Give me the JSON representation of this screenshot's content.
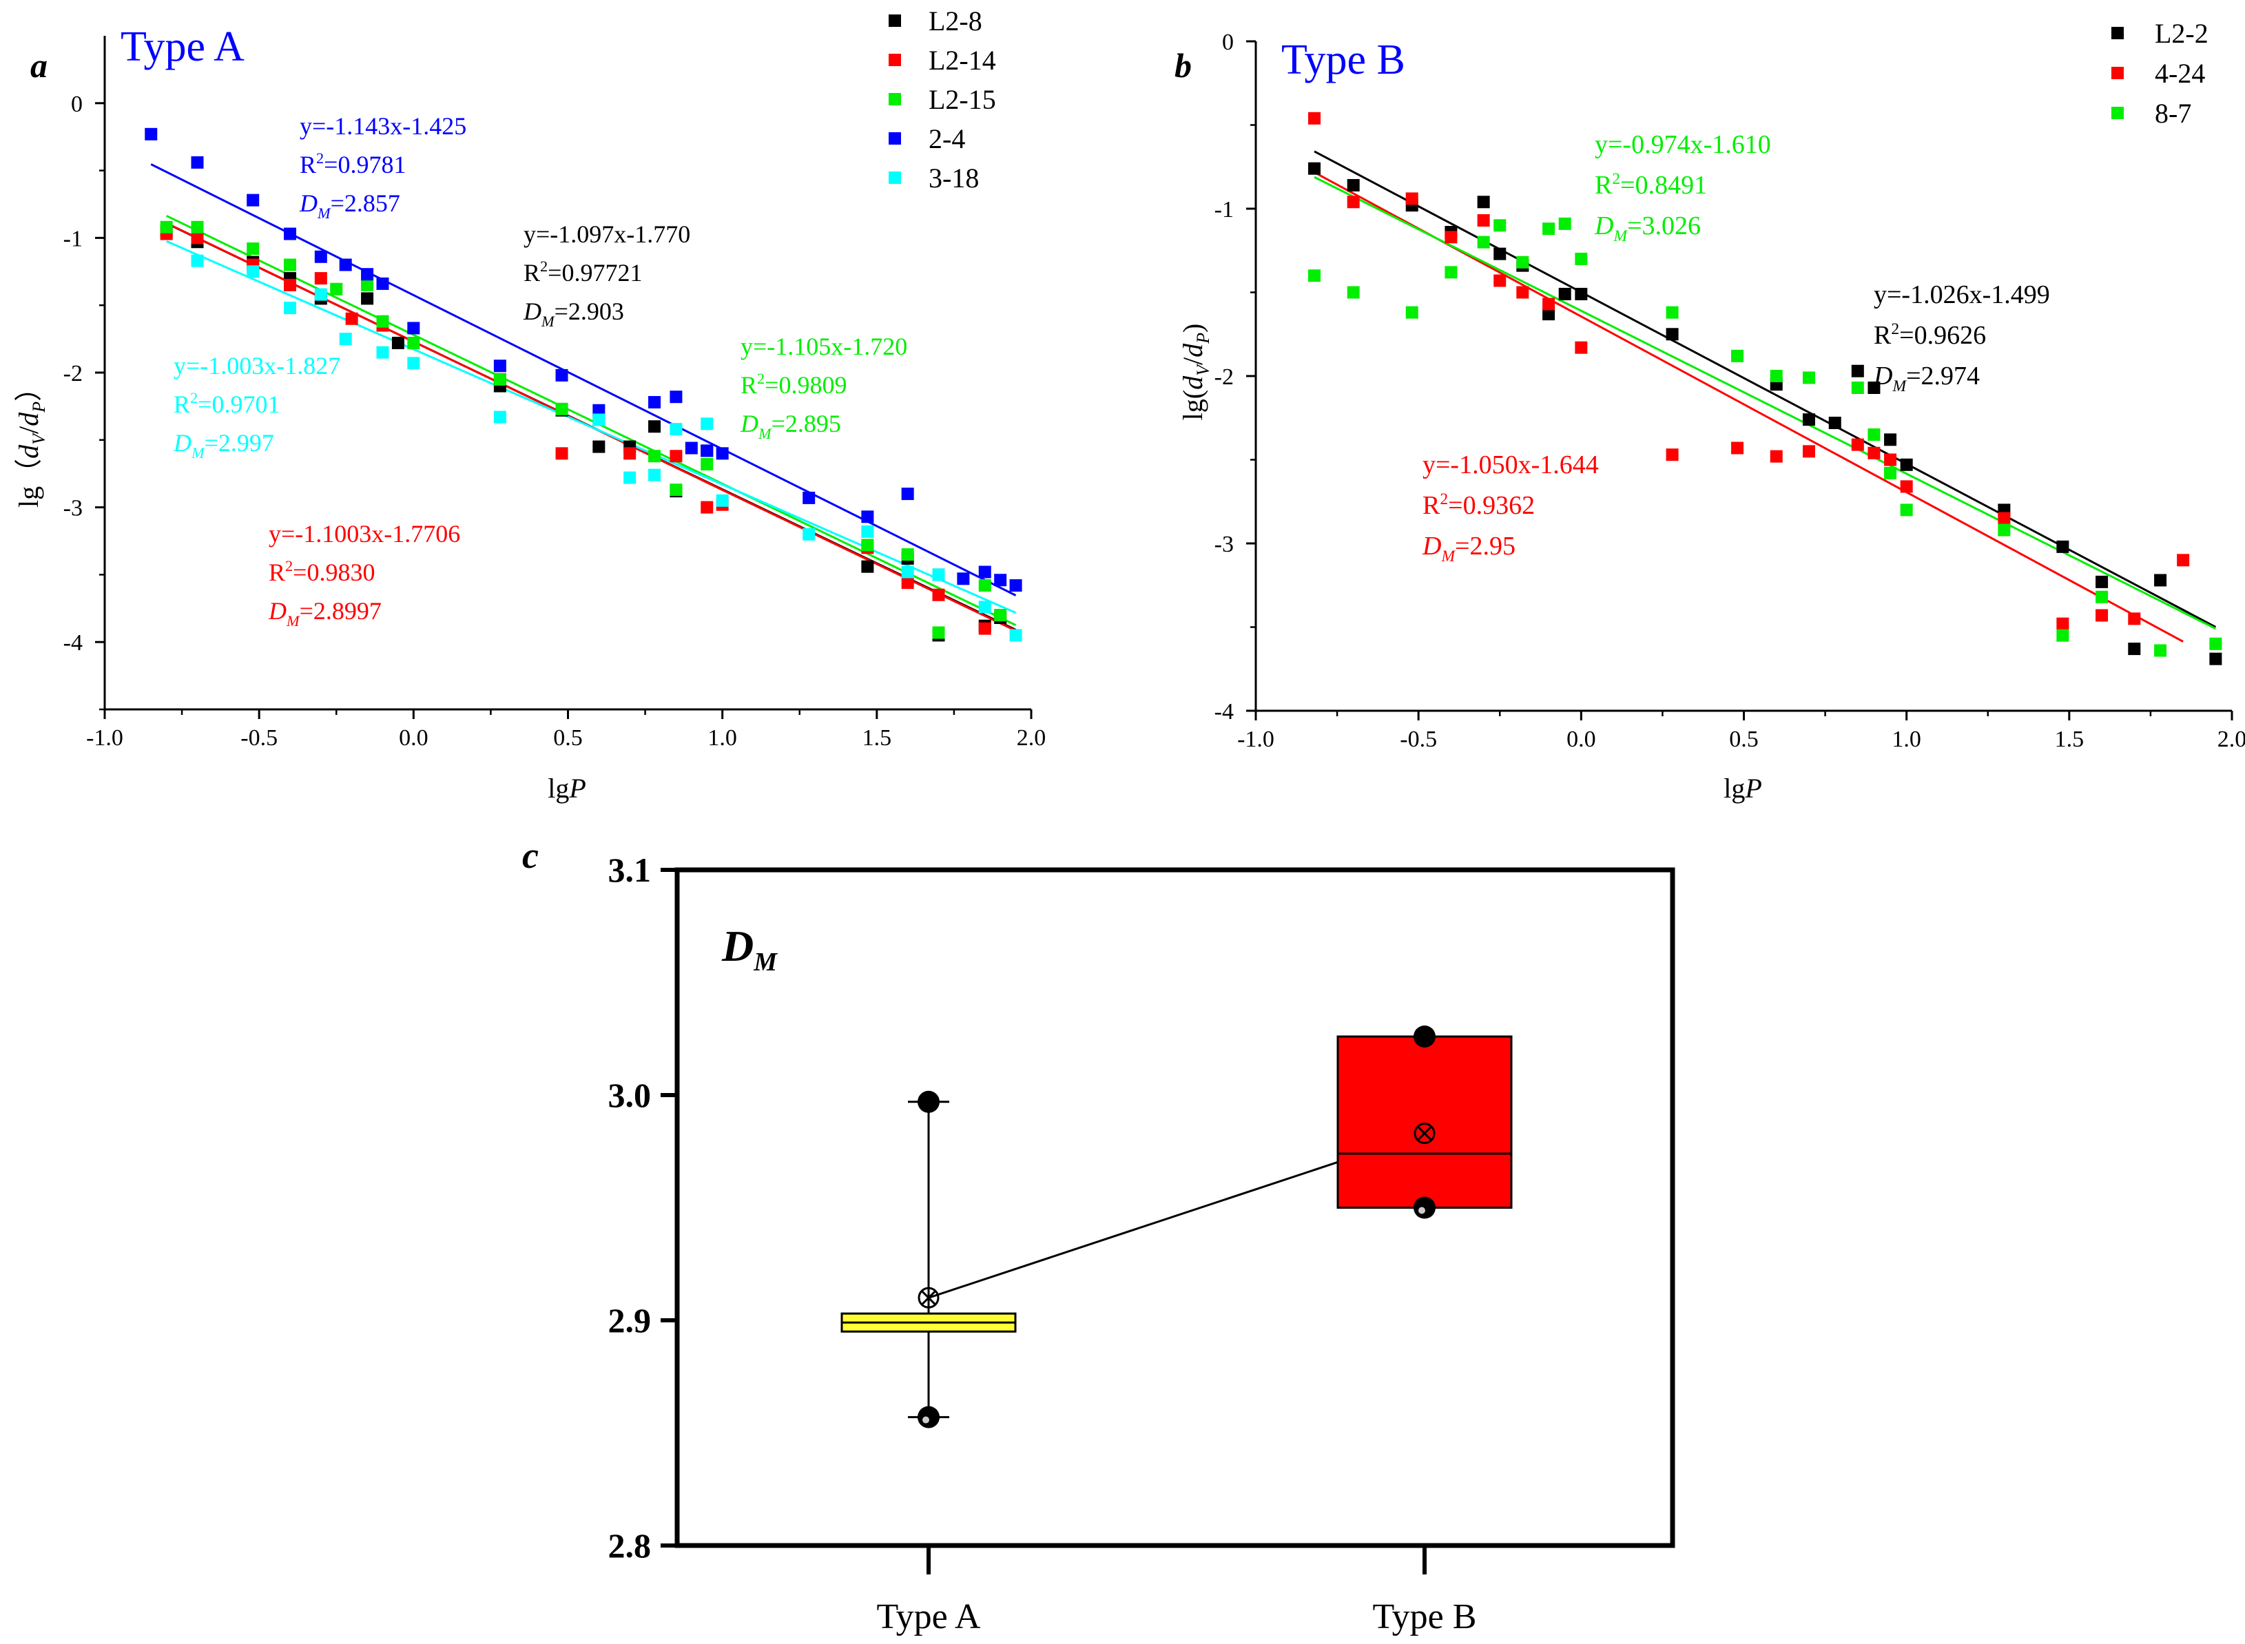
{
  "chart_data": [
    {
      "panel_label": "a",
      "type": "scatter",
      "title": "Type A",
      "xlabel": "lg",
      "xlabel_italic": "P",
      "ylabel": "lg（",
      "ylabel_italic": "d",
      "ylabel_sub1": "V",
      "ylabel_sep": "/",
      "ylabel_italic2": "d",
      "ylabel_sub2": "P",
      "ylabel_close": "）",
      "xlim": [
        -1.0,
        2.0
      ],
      "ylim": [
        -4.5,
        0.5
      ],
      "xticks": [
        -1.0,
        -0.5,
        0.0,
        0.5,
        1.0,
        1.5,
        2.0
      ],
      "xtick_labels": [
        "-1.0",
        "-0.5",
        "0.0",
        "0.5",
        "1.0",
        "1.5",
        "2.0"
      ],
      "yticks": [
        0,
        -1,
        -2,
        -3,
        -4
      ],
      "ytick_labels": [
        "0",
        "-1",
        "-2",
        "-3",
        "-4"
      ],
      "legend_position": "top-right",
      "series": [
        {
          "name": "L2-8",
          "color": "#000000",
          "slope": -1.097,
          "intercept": -1.77,
          "fit_x": [
            -0.8,
            1.95
          ],
          "points": [
            [
              -0.8,
              -0.95
            ],
            [
              -0.7,
              -1.03
            ],
            [
              -0.52,
              -1.18
            ],
            [
              -0.4,
              -1.3
            ],
            [
              -0.3,
              -1.45
            ],
            [
              -0.15,
              -1.45
            ],
            [
              -0.05,
              -1.78
            ],
            [
              0.28,
              -2.1
            ],
            [
              0.48,
              -2.28
            ],
            [
              0.6,
              -2.55
            ],
            [
              0.7,
              -2.55
            ],
            [
              0.78,
              -2.4
            ],
            [
              0.85,
              -2.88
            ],
            [
              0.95,
              -2.58
            ],
            [
              1.47,
              -3.44
            ],
            [
              1.6,
              -3.38
            ],
            [
              1.7,
              -3.95
            ],
            [
              1.85,
              -3.88
            ],
            [
              1.9,
              -3.82
            ]
          ]
        },
        {
          "name": "L2-14",
          "color": "#ff0000",
          "slope": -1.1003,
          "intercept": -1.7706,
          "fit_x": [
            -0.8,
            1.95
          ],
          "points": [
            [
              -0.8,
              -0.97
            ],
            [
              -0.7,
              -1.0
            ],
            [
              -0.52,
              -1.2
            ],
            [
              -0.4,
              -1.35
            ],
            [
              -0.3,
              -1.3
            ],
            [
              -0.2,
              -1.6
            ],
            [
              -0.1,
              -1.65
            ],
            [
              0.28,
              -2.05
            ],
            [
              0.48,
              -2.6
            ],
            [
              0.7,
              -2.6
            ],
            [
              0.85,
              -2.62
            ],
            [
              0.95,
              -3.0
            ],
            [
              1.0,
              -2.98
            ],
            [
              1.47,
              -3.3
            ],
            [
              1.6,
              -3.56
            ],
            [
              1.7,
              -3.65
            ],
            [
              1.85,
              -3.9
            ]
          ]
        },
        {
          "name": "L2-15",
          "color": "#00ee00",
          "slope": -1.105,
          "intercept": -1.72,
          "fit_x": [
            -0.8,
            1.95
          ],
          "points": [
            [
              -0.8,
              -0.92
            ],
            [
              -0.7,
              -0.92
            ],
            [
              -0.52,
              -1.08
            ],
            [
              -0.4,
              -1.2
            ],
            [
              -0.25,
              -1.38
            ],
            [
              -0.15,
              -1.35
            ],
            [
              -0.1,
              -1.62
            ],
            [
              0.0,
              -1.78
            ],
            [
              0.28,
              -2.05
            ],
            [
              0.48,
              -2.27
            ],
            [
              0.6,
              -2.35
            ],
            [
              0.78,
              -2.62
            ],
            [
              0.85,
              -2.87
            ],
            [
              0.95,
              -2.68
            ],
            [
              1.47,
              -3.28
            ],
            [
              1.6,
              -3.35
            ],
            [
              1.7,
              -3.93
            ],
            [
              1.85,
              -3.58
            ],
            [
              1.9,
              -3.8
            ]
          ]
        },
        {
          "name": "2-4",
          "color": "#0000ff",
          "slope": -1.143,
          "intercept": -1.425,
          "fit_x": [
            -0.85,
            1.95
          ],
          "points": [
            [
              -0.85,
              -0.23
            ],
            [
              -0.7,
              -0.44
            ],
            [
              -0.52,
              -0.72
            ],
            [
              -0.4,
              -0.97
            ],
            [
              -0.3,
              -1.14
            ],
            [
              -0.22,
              -1.2
            ],
            [
              -0.15,
              -1.27
            ],
            [
              -0.1,
              -1.34
            ],
            [
              0.0,
              -1.67
            ],
            [
              0.28,
              -1.95
            ],
            [
              0.48,
              -2.02
            ],
            [
              0.6,
              -2.28
            ],
            [
              0.78,
              -2.22
            ],
            [
              0.85,
              -2.18
            ],
            [
              0.9,
              -2.56
            ],
            [
              0.95,
              -2.58
            ],
            [
              1.0,
              -2.6
            ],
            [
              1.28,
              -2.93
            ],
            [
              1.47,
              -3.07
            ],
            [
              1.6,
              -2.9
            ],
            [
              1.7,
              -3.5
            ],
            [
              1.78,
              -3.53
            ],
            [
              1.85,
              -3.48
            ],
            [
              1.9,
              -3.54
            ],
            [
              1.95,
              -3.58
            ]
          ]
        },
        {
          "name": "3-18",
          "color": "#00ffff",
          "slope": -1.003,
          "intercept": -1.827,
          "fit_x": [
            -0.8,
            1.95
          ],
          "points": [
            [
              -0.7,
              -1.17
            ],
            [
              -0.52,
              -1.25
            ],
            [
              -0.4,
              -1.52
            ],
            [
              -0.3,
              -1.42
            ],
            [
              -0.22,
              -1.75
            ],
            [
              -0.1,
              -1.85
            ],
            [
              0.0,
              -1.93
            ],
            [
              0.28,
              -2.33
            ],
            [
              0.6,
              -2.35
            ],
            [
              0.7,
              -2.78
            ],
            [
              0.78,
              -2.76
            ],
            [
              0.85,
              -2.42
            ],
            [
              0.95,
              -2.38
            ],
            [
              1.0,
              -2.95
            ],
            [
              1.28,
              -3.2
            ],
            [
              1.47,
              -3.18
            ],
            [
              1.6,
              -3.48
            ],
            [
              1.7,
              -3.5
            ],
            [
              1.85,
              -3.74
            ],
            [
              1.95,
              -3.95
            ]
          ]
        }
      ],
      "annotations": [
        {
          "color": "#0000ff",
          "eq": "y=-1.143x-1.425",
          "r2": "=0.9781",
          "dm": "=2.857"
        },
        {
          "color": "#000000",
          "eq": "y=-1.097x-1.770",
          "r2": "=0.97721",
          "dm": "=2.903"
        },
        {
          "color": "#00ffff",
          "eq": "y=-1.003x-1.827",
          "r2": "=0.9701",
          "dm": "=2.997"
        },
        {
          "color": "#00ee00",
          "eq": "y=-1.105x-1.720",
          "r2": "=0.9809",
          "dm": "=2.895"
        },
        {
          "color": "#ff0000",
          "eq": "y=-1.1003x-1.7706",
          "r2": "=0.9830",
          "dm": "=2.8997"
        }
      ]
    },
    {
      "panel_label": "b",
      "type": "scatter",
      "title": "Type B",
      "xlabel": "lg",
      "xlabel_italic": "P",
      "ylabel": "lg(",
      "ylabel_italic": "d",
      "ylabel_sub1": "V",
      "ylabel_sep": "/",
      "ylabel_italic2": "d",
      "ylabel_sub2": "P",
      "ylabel_close": ")",
      "xlim": [
        -1.0,
        2.0
      ],
      "ylim": [
        -4.0,
        0.0
      ],
      "xticks": [
        -1.0,
        -0.5,
        0.0,
        0.5,
        1.0,
        1.5,
        2.0
      ],
      "xtick_labels": [
        "-1.0",
        "-0.5",
        "0.0",
        "0.5",
        "1.0",
        "1.5",
        "2.0"
      ],
      "yticks": [
        0,
        -1,
        -2,
        -3,
        -4
      ],
      "ytick_labels": [
        "0",
        "-1",
        "-2",
        "-3",
        "-4"
      ],
      "legend_position": "top-right",
      "series": [
        {
          "name": "L2-2",
          "color": "#000000",
          "slope": -1.026,
          "intercept": -1.499,
          "fit_x": [
            -0.82,
            1.95
          ],
          "points": [
            [
              -0.82,
              -0.76
            ],
            [
              -0.7,
              -0.86
            ],
            [
              -0.52,
              -0.98
            ],
            [
              -0.4,
              -1.14
            ],
            [
              -0.3,
              -0.96
            ],
            [
              -0.25,
              -1.27
            ],
            [
              -0.18,
              -1.34
            ],
            [
              -0.1,
              -1.63
            ],
            [
              -0.05,
              -1.51
            ],
            [
              0.0,
              -1.51
            ],
            [
              0.28,
              -1.75
            ],
            [
              0.6,
              -2.05
            ],
            [
              0.7,
              -2.26
            ],
            [
              0.78,
              -2.28
            ],
            [
              0.85,
              -1.97
            ],
            [
              0.9,
              -2.07
            ],
            [
              0.95,
              -2.38
            ],
            [
              1.0,
              -2.53
            ],
            [
              1.3,
              -2.8
            ],
            [
              1.48,
              -3.02
            ],
            [
              1.6,
              -3.23
            ],
            [
              1.7,
              -3.63
            ],
            [
              1.78,
              -3.22
            ],
            [
              1.95,
              -3.69
            ]
          ]
        },
        {
          "name": "4-24",
          "color": "#ff0000",
          "slope": -1.05,
          "intercept": -1.644,
          "fit_x": [
            -0.82,
            1.85
          ],
          "points": [
            [
              -0.82,
              -0.46
            ],
            [
              -0.7,
              -0.96
            ],
            [
              -0.52,
              -0.94
            ],
            [
              -0.4,
              -1.17
            ],
            [
              -0.3,
              -1.07
            ],
            [
              -0.25,
              -1.43
            ],
            [
              -0.18,
              -1.5
            ],
            [
              -0.1,
              -1.57
            ],
            [
              0.0,
              -1.83
            ],
            [
              0.28,
              -2.47
            ],
            [
              0.48,
              -2.43
            ],
            [
              0.6,
              -2.48
            ],
            [
              0.7,
              -2.45
            ],
            [
              0.85,
              -2.41
            ],
            [
              0.9,
              -2.46
            ],
            [
              0.95,
              -2.5
            ],
            [
              1.0,
              -2.66
            ],
            [
              1.3,
              -2.85
            ],
            [
              1.48,
              -3.48
            ],
            [
              1.6,
              -3.43
            ],
            [
              1.7,
              -3.45
            ],
            [
              1.85,
              -3.1
            ]
          ]
        },
        {
          "name": "8-7",
          "color": "#00ee00",
          "slope": -0.974,
          "intercept": -1.61,
          "fit_x": [
            -0.82,
            1.95
          ],
          "points": [
            [
              -0.82,
              -1.4
            ],
            [
              -0.7,
              -1.5
            ],
            [
              -0.52,
              -1.62
            ],
            [
              -0.4,
              -1.38
            ],
            [
              -0.3,
              -1.2
            ],
            [
              -0.25,
              -1.1
            ],
            [
              -0.18,
              -1.32
            ],
            [
              -0.1,
              -1.12
            ],
            [
              -0.05,
              -1.09
            ],
            [
              0.0,
              -1.3
            ],
            [
              0.28,
              -1.62
            ],
            [
              0.48,
              -1.88
            ],
            [
              0.6,
              -2.0
            ],
            [
              0.7,
              -2.01
            ],
            [
              0.85,
              -2.07
            ],
            [
              0.9,
              -2.35
            ],
            [
              0.95,
              -2.58
            ],
            [
              1.0,
              -2.8
            ],
            [
              1.3,
              -2.92
            ],
            [
              1.6,
              -3.32
            ],
            [
              1.48,
              -3.55
            ],
            [
              1.78,
              -3.64
            ],
            [
              1.95,
              -3.6
            ]
          ]
        }
      ],
      "annotations": [
        {
          "color": "#00ee00",
          "eq": "y=-0.974x-1.610",
          "r2": "=0.8491",
          "dm": "=3.026"
        },
        {
          "color": "#000000",
          "eq": "y=-1.026x-1.499",
          "r2": "=0.9626",
          "dm": "=2.974"
        },
        {
          "color": "#ff0000",
          "eq": "y=-1.050x-1.644",
          "r2": "=0.9362",
          "dm": "=2.95"
        }
      ]
    },
    {
      "panel_label": "c",
      "type": "box",
      "title_main": "D",
      "title_sub": "M",
      "categories": [
        "Type A",
        "Type B"
      ],
      "ylim": [
        2.8,
        3.1
      ],
      "yticks": [
        2.8,
        2.9,
        3.0,
        3.1
      ],
      "ytick_labels": [
        "2.8",
        "2.9",
        "3.0",
        "3.1"
      ],
      "boxes": [
        {
          "category": "Type A",
          "color": "#ffff33",
          "q1": 2.895,
          "median": 2.899,
          "q3": 2.903,
          "mean": 2.91,
          "whisker_low": 2.857,
          "whisker_high": 2.997,
          "min": 2.857,
          "max": 2.997
        },
        {
          "category": "Type B",
          "color": "#ff0000",
          "q1": 2.95,
          "median": 2.974,
          "q3": 3.026,
          "mean": 2.983,
          "min": 2.95,
          "max": 3.026
        }
      ]
    }
  ]
}
